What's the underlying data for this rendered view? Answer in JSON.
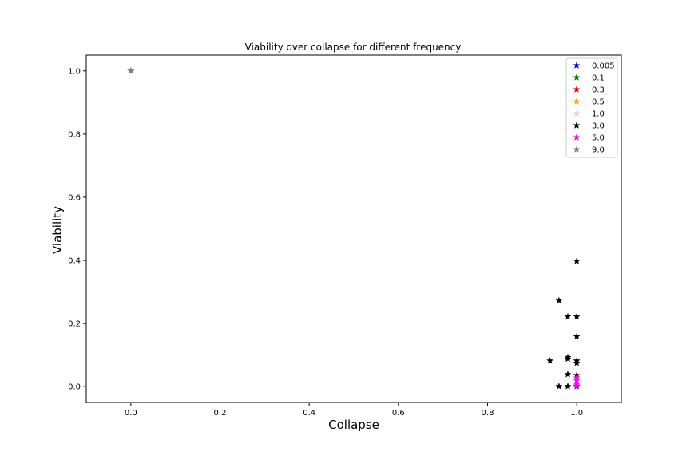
{
  "chart_data": {
    "type": "scatter",
    "title": "Viability over collapse for different frequency",
    "xlabel": "Collapse",
    "ylabel": "Viability",
    "xlim": [
      -0.1,
      1.1
    ],
    "ylim": [
      -0.05,
      1.05
    ],
    "xticks": [
      "0.0",
      "0.2",
      "0.4",
      "0.6",
      "0.8",
      "1.0"
    ],
    "yticks": [
      "0.0",
      "0.2",
      "0.4",
      "0.6",
      "0.8",
      "1.0"
    ],
    "grid": false,
    "legend_position": "top-right",
    "marker": "star",
    "series": [
      {
        "name": "0.005",
        "color": "#0000ff",
        "points": [
          [
            0.0,
            1.0
          ]
        ]
      },
      {
        "name": "0.1",
        "color": "#008000",
        "points": [
          [
            0.0,
            1.0
          ]
        ]
      },
      {
        "name": "0.3",
        "color": "#ff0000",
        "points": [
          [
            0.0,
            1.0
          ]
        ]
      },
      {
        "name": "0.5",
        "color": "#ffa500",
        "points": [
          [
            0.0,
            1.0
          ]
        ]
      },
      {
        "name": "1.0",
        "color": "#ffc0cb",
        "points": [
          [
            0.0,
            1.0
          ]
        ]
      },
      {
        "name": "3.0",
        "color": "#000000",
        "points": [
          [
            1.0,
            0.398
          ],
          [
            0.96,
            0.273
          ],
          [
            0.98,
            0.222
          ],
          [
            1.0,
            0.222
          ],
          [
            1.0,
            0.159
          ],
          [
            0.98,
            0.093
          ],
          [
            0.98,
            0.088
          ],
          [
            0.94,
            0.082
          ],
          [
            1.0,
            0.082
          ],
          [
            1.0,
            0.075
          ],
          [
            0.98,
            0.039
          ],
          [
            1.0,
            0.036
          ],
          [
            0.96,
            0.001
          ],
          [
            0.98,
            0.001
          ],
          [
            1.0,
            0.001
          ]
        ]
      },
      {
        "name": "5.0",
        "color": "#ff00ff",
        "points": [
          [
            1.0,
            0.028
          ],
          [
            1.0,
            0.02
          ],
          [
            1.0,
            0.008
          ],
          [
            1.0,
            0.003
          ]
        ]
      },
      {
        "name": "9.0",
        "color": "#808080",
        "points": [
          [
            0.0,
            1.0
          ]
        ]
      }
    ]
  }
}
